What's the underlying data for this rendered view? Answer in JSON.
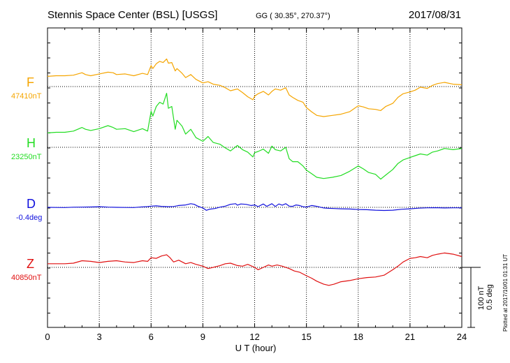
{
  "header": {
    "title": "Stennis Space Center (BSL)  [USGS]",
    "coords": "GG ( 30.35°, 270.37°)",
    "date": "2017/08/31"
  },
  "scale": {
    "nt": "100 nT",
    "deg": "0.5 deg"
  },
  "plotted_note": "Plotted at 2017/10/01 01:31 UT",
  "chart_data": {
    "type": "line",
    "xlabel": "U T (hour)",
    "xlim": [
      0,
      24
    ],
    "xticks": [
      "0",
      "3",
      "6",
      "9",
      "12",
      "15",
      "18",
      "21",
      "24"
    ],
    "grid": true,
    "series": [
      {
        "name": "F",
        "baseline_label": "47410nT",
        "color": "#f5a500",
        "unit": "nT",
        "baseline": 47410,
        "x": [
          0,
          0.5,
          1,
          1.5,
          2,
          2.2,
          2.5,
          3,
          3.5,
          3.8,
          4,
          4.5,
          5,
          5.5,
          5.8,
          6,
          6.1,
          6.3,
          6.5,
          6.7,
          6.9,
          7,
          7.2,
          7.4,
          7.5,
          7.8,
          8,
          8.3,
          8.6,
          9,
          9.3,
          9.6,
          10,
          10.3,
          10.6,
          11,
          11.3,
          11.6,
          11.9,
          12,
          12.2,
          12.5,
          12.8,
          13,
          13.2,
          13.5,
          13.8,
          14,
          14.2,
          14.5,
          14.8,
          15,
          15.3,
          15.6,
          16,
          16.5,
          17,
          17.5,
          18,
          18.3,
          18.6,
          19,
          19.3,
          19.6,
          20,
          20.3,
          20.6,
          21,
          21.3,
          21.6,
          22,
          22.3,
          22.6,
          23,
          23.5,
          24
        ],
        "y": [
          47427,
          47428,
          47428,
          47429,
          47433,
          47430,
          47428,
          47431,
          47434,
          47433,
          47430,
          47431,
          47428,
          47432,
          47430,
          47445,
          47440,
          47448,
          47452,
          47450,
          47456,
          47449,
          47450,
          47436,
          47440,
          47432,
          47425,
          47430,
          47422,
          47416,
          47418,
          47414,
          47412,
          47408,
          47403,
          47406,
          47400,
          47393,
          47388,
          47394,
          47398,
          47402,
          47396,
          47402,
          47406,
          47404,
          47408,
          47396,
          47392,
          47387,
          47384,
          47375,
          47368,
          47362,
          47360,
          47362,
          47364,
          47368,
          47378,
          47376,
          47373,
          47372,
          47370,
          47377,
          47382,
          47392,
          47398,
          47401,
          47404,
          47409,
          47407,
          47412,
          47415,
          47417,
          47414,
          47413
        ]
      },
      {
        "name": "H",
        "baseline_label": "23250nT",
        "color": "#22dd22",
        "unit": "nT",
        "baseline": 23250,
        "x": [
          0,
          0.5,
          1,
          1.5,
          2,
          2.2,
          2.5,
          3,
          3.5,
          3.8,
          4,
          4.5,
          5,
          5.5,
          5.8,
          6,
          6.1,
          6.3,
          6.5,
          6.7,
          6.9,
          7,
          7.2,
          7.4,
          7.5,
          7.8,
          8,
          8.3,
          8.6,
          9,
          9.3,
          9.6,
          10,
          10.3,
          10.6,
          11,
          11.3,
          11.6,
          11.9,
          12,
          12.2,
          12.5,
          12.8,
          13,
          13.2,
          13.5,
          13.8,
          14,
          14.2,
          14.5,
          14.8,
          15,
          15.3,
          15.6,
          16,
          16.5,
          17,
          17.5,
          18,
          18.3,
          18.6,
          19,
          19.3,
          19.6,
          20,
          20.3,
          20.6,
          21,
          21.3,
          21.6,
          22,
          22.3,
          22.6,
          23,
          23.5,
          24
        ],
        "y": [
          23274,
          23275,
          23275,
          23277,
          23283,
          23280,
          23278,
          23281,
          23286,
          23283,
          23280,
          23281,
          23276,
          23281,
          23277,
          23310,
          23302,
          23318,
          23325,
          23322,
          23340,
          23315,
          23318,
          23280,
          23295,
          23285,
          23272,
          23280,
          23266,
          23260,
          23268,
          23258,
          23255,
          23249,
          23244,
          23253,
          23246,
          23242,
          23234,
          23241,
          23243,
          23247,
          23240,
          23252,
          23246,
          23244,
          23250,
          23231,
          23226,
          23226,
          23219,
          23212,
          23206,
          23200,
          23198,
          23200,
          23203,
          23210,
          23219,
          23214,
          23208,
          23205,
          23197,
          23204,
          23213,
          23223,
          23229,
          23233,
          23236,
          23239,
          23237,
          23242,
          23244,
          23248,
          23246,
          23248
        ]
      },
      {
        "name": "D",
        "baseline_label": "-0.4deg",
        "color": "#1010dd",
        "unit": "deg",
        "baseline": -0.4,
        "x": [
          0,
          0.5,
          1,
          1.5,
          2,
          2.5,
          3,
          3.5,
          4,
          4.5,
          5,
          5.5,
          5.8,
          6,
          6.3,
          6.6,
          7,
          7.3,
          7.6,
          8,
          8.3,
          8.5,
          8.7,
          9,
          9.2,
          9.4,
          9.7,
          10,
          10.3,
          10.6,
          10.9,
          11,
          11.2,
          11.5,
          11.8,
          12,
          12.2,
          12.5,
          12.7,
          13,
          13.2,
          13.4,
          13.6,
          13.8,
          14,
          14.2,
          14.4,
          14.6,
          14.8,
          15,
          15.3,
          15.6,
          16,
          16.3,
          16.6,
          17,
          17.5,
          18,
          18.5,
          19,
          19.5,
          20,
          20.5,
          21,
          21.5,
          22,
          22.5,
          23,
          23.5,
          24
        ],
        "y": [
          -0.4,
          -0.401,
          -0.402,
          -0.399,
          -0.398,
          -0.397,
          -0.395,
          -0.398,
          -0.4,
          -0.401,
          -0.402,
          -0.396,
          -0.394,
          -0.39,
          -0.388,
          -0.392,
          -0.395,
          -0.393,
          -0.385,
          -0.38,
          -0.37,
          -0.375,
          -0.39,
          -0.405,
          -0.425,
          -0.415,
          -0.41,
          -0.398,
          -0.39,
          -0.375,
          -0.37,
          -0.382,
          -0.372,
          -0.375,
          -0.385,
          -0.38,
          -0.394,
          -0.372,
          -0.392,
          -0.37,
          -0.393,
          -0.372,
          -0.382,
          -0.37,
          -0.39,
          -0.392,
          -0.38,
          -0.385,
          -0.395,
          -0.398,
          -0.385,
          -0.392,
          -0.405,
          -0.408,
          -0.41,
          -0.412,
          -0.414,
          -0.418,
          -0.42,
          -0.424,
          -0.426,
          -0.424,
          -0.416,
          -0.412,
          -0.407,
          -0.404,
          -0.403,
          -0.405,
          -0.404,
          -0.404
        ]
      },
      {
        "name": "Z",
        "baseline_label": "40850nT",
        "color": "#e01010",
        "unit": "nT",
        "baseline": 40850,
        "x": [
          0,
          0.5,
          1,
          1.5,
          2,
          2.5,
          3,
          3.5,
          4,
          4.5,
          5,
          5.5,
          5.8,
          6,
          6.3,
          6.6,
          6.9,
          7.1,
          7.3,
          7.6,
          8,
          8.3,
          8.6,
          9,
          9.3,
          9.6,
          10,
          10.3,
          10.6,
          11,
          11.3,
          11.6,
          12,
          12.2,
          12.5,
          12.8,
          13,
          13.3,
          13.6,
          14,
          14.3,
          14.6,
          15,
          15.3,
          15.6,
          16,
          16.3,
          16.6,
          17,
          17.5,
          18,
          18.5,
          19,
          19.5,
          20,
          20.3,
          20.6,
          21,
          21.3,
          21.6,
          22,
          22.3,
          22.6,
          23,
          23.5,
          24
        ],
        "y": [
          40856,
          40856,
          40856,
          40857,
          40861,
          40860,
          40858,
          40860,
          40861,
          40859,
          40858,
          40861,
          40860,
          40866,
          40865,
          40869,
          40871,
          40866,
          40859,
          40862,
          40856,
          40858,
          40855,
          40852,
          40848,
          40850,
          40853,
          40856,
          40857,
          40853,
          40852,
          40855,
          40850,
          40846,
          40850,
          40854,
          40852,
          40854,
          40852,
          40848,
          40844,
          40842,
          40836,
          40832,
          40827,
          40822,
          40820,
          40822,
          40826,
          40828,
          40831,
          40833,
          40834,
          40837,
          40846,
          40852,
          40859,
          40865,
          40866,
          40868,
          40866,
          40870,
          40872,
          40874,
          40872,
          40868
        ]
      }
    ]
  }
}
